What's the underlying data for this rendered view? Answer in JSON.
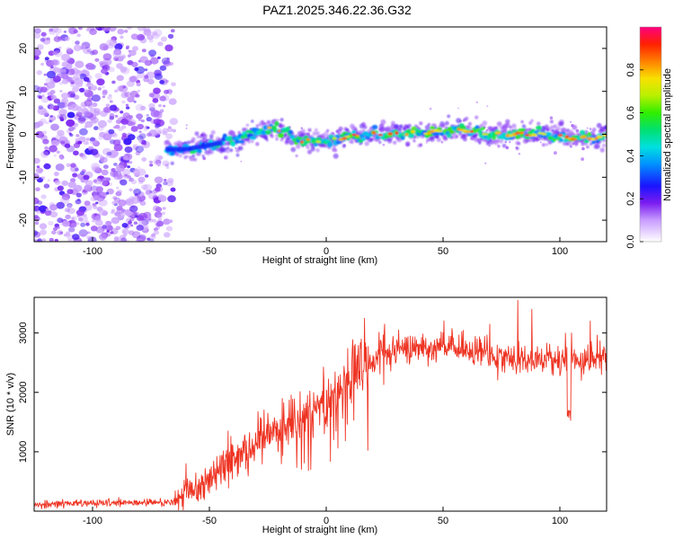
{
  "chart_data": {
    "title": "PAZ1.2025.346.22.36.G32",
    "panels": [
      {
        "type": "heatmap",
        "xlabel": "Height of straight line (km)",
        "ylabel": "Frequency (Hz)",
        "xlim": [
          -125,
          120
        ],
        "ylim": [
          -25,
          25
        ],
        "xticks": [
          -100,
          -50,
          0,
          50,
          100
        ],
        "yticks": [
          -20,
          -10,
          0,
          10,
          20
        ],
        "description_points": {
          "noise_region_x": [
            -125,
            -65
          ],
          "signal_centerline": [
            {
              "x": -68,
              "y": -3.5
            },
            {
              "x": -60,
              "y": -3.5
            },
            {
              "x": -50,
              "y": -2.5
            },
            {
              "x": -40,
              "y": -1.5
            },
            {
              "x": -30,
              "y": 0.5
            },
            {
              "x": -22,
              "y": 1.5
            },
            {
              "x": -17,
              "y": 0.5
            },
            {
              "x": -12,
              "y": -1.5
            },
            {
              "x": 0,
              "y": -1.5
            },
            {
              "x": 10,
              "y": -0.5
            },
            {
              "x": 20,
              "y": 0
            },
            {
              "x": 30,
              "y": 0
            },
            {
              "x": 40,
              "y": 0.5
            },
            {
              "x": 50,
              "y": 0.5
            },
            {
              "x": 60,
              "y": 1
            },
            {
              "x": 70,
              "y": 0
            },
            {
              "x": 80,
              "y": 0
            },
            {
              "x": 90,
              "y": 0
            },
            {
              "x": 100,
              "y": -0.5
            },
            {
              "x": 110,
              "y": -1
            },
            {
              "x": 120,
              "y": -0.5
            }
          ]
        },
        "colorbar": {
          "label": "Normalized spectral amplitude",
          "range": [
            0.0,
            1.0
          ],
          "ticks": [
            "0.0",
            "0.2",
            "0.4",
            "0.6",
            "0.8"
          ],
          "colormap": "rainbow"
        }
      },
      {
        "type": "line",
        "xlabel": "Height of straight line (km)",
        "ylabel": "SNR (10 * v/v)",
        "xlim": [
          -125,
          120
        ],
        "ylim": [
          0,
          3600
        ],
        "xticks": [
          -100,
          -50,
          0,
          50,
          100
        ],
        "yticks": [
          1000,
          2000,
          3000
        ],
        "line_color": "#ee3322",
        "trend": [
          {
            "x": -125,
            "y": 120
          },
          {
            "x": -100,
            "y": 130
          },
          {
            "x": -80,
            "y": 140
          },
          {
            "x": -65,
            "y": 150
          },
          {
            "x": -60,
            "y": 300
          },
          {
            "x": -50,
            "y": 600
          },
          {
            "x": -40,
            "y": 900
          },
          {
            "x": -30,
            "y": 1200
          },
          {
            "x": -20,
            "y": 1450
          },
          {
            "x": -10,
            "y": 1650
          },
          {
            "x": 0,
            "y": 1900
          },
          {
            "x": 10,
            "y": 2250
          },
          {
            "x": 20,
            "y": 2550
          },
          {
            "x": 30,
            "y": 2700
          },
          {
            "x": 40,
            "y": 2780
          },
          {
            "x": 50,
            "y": 2760
          },
          {
            "x": 60,
            "y": 2700
          },
          {
            "x": 70,
            "y": 2650
          },
          {
            "x": 80,
            "y": 2600
          },
          {
            "x": 90,
            "y": 2550
          },
          {
            "x": 100,
            "y": 2550
          },
          {
            "x": 110,
            "y": 2550
          },
          {
            "x": 120,
            "y": 2600
          }
        ],
        "spikes": [
          {
            "x": -60,
            "y": 800
          },
          {
            "x": -42,
            "y": 1350
          },
          {
            "x": -35,
            "y": 1250
          },
          {
            "x": -25,
            "y": 1650
          },
          {
            "x": -8,
            "y": 1950
          },
          {
            "x": 8,
            "y": 2250
          },
          {
            "x": 15,
            "y": 2900
          },
          {
            "x": 25,
            "y": 3150
          },
          {
            "x": 70,
            "y": 3150
          },
          {
            "x": 82,
            "y": 3550
          },
          {
            "x": 88,
            "y": 3400
          },
          {
            "x": 104,
            "y": 1550
          },
          {
            "x": 105,
            "y": 3000
          },
          {
            "x": 113,
            "y": 3200
          }
        ]
      }
    ]
  }
}
